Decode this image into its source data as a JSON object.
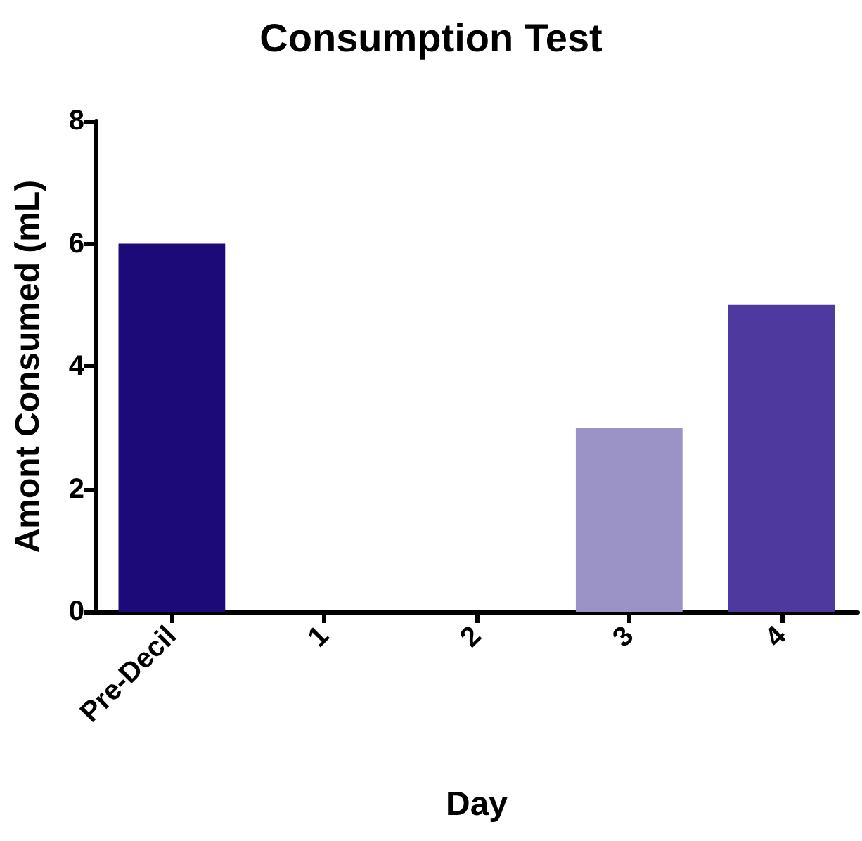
{
  "chart_data": {
    "type": "bar",
    "title": "Consumption Test",
    "xlabel": "Day",
    "ylabel": "Amont Consumed (mL)",
    "categories": [
      "Pre-Decil",
      "1",
      "2",
      "3",
      "4"
    ],
    "values": [
      6,
      0,
      0,
      3,
      5
    ],
    "colors": [
      "#1c0a78",
      null,
      null,
      "#9b93c6",
      "#4e3a9e"
    ],
    "ylim": [
      0,
      8
    ],
    "yticks": [
      0,
      2,
      4,
      6,
      8
    ],
    "grid": false
  }
}
